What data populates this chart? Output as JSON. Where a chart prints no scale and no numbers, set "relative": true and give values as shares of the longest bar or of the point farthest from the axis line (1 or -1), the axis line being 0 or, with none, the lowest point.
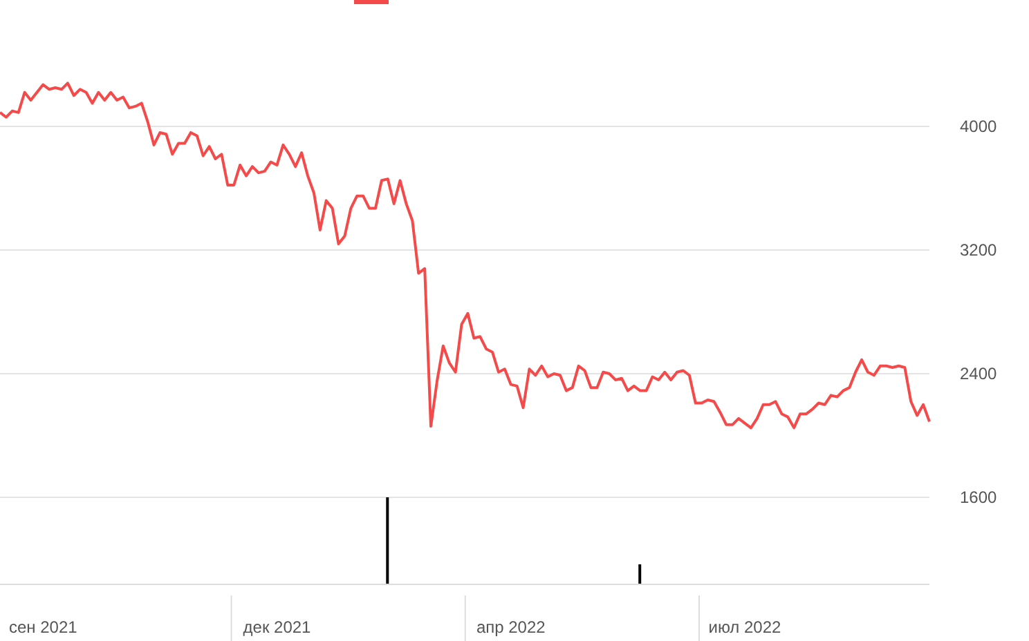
{
  "chart_data": [
    {
      "type": "line",
      "color": "#f44a4a",
      "categories": [
        null,
        null,
        null,
        null,
        null,
        null,
        null,
        "сен 2021",
        null,
        null,
        null,
        null,
        null,
        null,
        null,
        null,
        null,
        null,
        null,
        null,
        null,
        null,
        null,
        null,
        null,
        null,
        null,
        null,
        null,
        null,
        null,
        null,
        null,
        null,
        null,
        null,
        null,
        null,
        null,
        null,
        null,
        null,
        null,
        null,
        null,
        "дек 2021",
        null,
        null,
        null,
        null,
        null,
        null,
        null,
        null,
        null,
        null,
        null,
        null,
        null,
        null,
        null,
        null,
        null,
        null,
        null,
        null,
        null,
        null,
        null,
        null,
        null,
        null,
        null,
        null,
        null,
        null,
        null,
        null,
        null,
        null,
        null,
        null,
        null,
        "апр 2022",
        null,
        null,
        null,
        null,
        null,
        null,
        null,
        null,
        null,
        null,
        null,
        null,
        null,
        null,
        null,
        null,
        null,
        null,
        null,
        null,
        null,
        null,
        null,
        null,
        null,
        null,
        null,
        null,
        null,
        null,
        null,
        null,
        null,
        null,
        null,
        null,
        null,
        "июл 2022",
        null,
        null,
        null,
        null,
        null,
        null,
        null,
        null,
        null,
        null,
        null,
        null,
        null,
        null,
        null,
        null,
        null,
        null,
        null,
        null,
        null,
        null,
        null,
        null,
        null,
        null,
        null,
        null,
        null,
        null
      ],
      "values": [
        4090,
        4060,
        4100,
        4090,
        4220,
        4170,
        4220,
        4270,
        4240,
        4250,
        4240,
        4280,
        4200,
        4240,
        4220,
        4150,
        4220,
        4170,
        4220,
        4170,
        4190,
        4120,
        4130,
        4150,
        4030,
        3880,
        3960,
        3950,
        3820,
        3890,
        3890,
        3960,
        3940,
        3810,
        3870,
        3790,
        3820,
        3620,
        3620,
        3750,
        3680,
        3740,
        3700,
        3710,
        3770,
        3750,
        3880,
        3820,
        3740,
        3830,
        3680,
        3570,
        3330,
        3520,
        3470,
        3240,
        3290,
        3470,
        3550,
        3550,
        3470,
        3470,
        3650,
        3660,
        3500,
        3650,
        3500,
        3390,
        3050,
        3080,
        2060,
        2350,
        2580,
        2470,
        2410,
        2720,
        2790,
        2630,
        2640,
        2560,
        2540,
        2410,
        2430,
        2330,
        2320,
        2180,
        2430,
        2390,
        2450,
        2380,
        2400,
        2390,
        2290,
        2310,
        2450,
        2420,
        2310,
        2310,
        2410,
        2400,
        2360,
        2370,
        2290,
        2320,
        2290,
        2290,
        2380,
        2360,
        2410,
        2360,
        2410,
        2420,
        2390,
        2210,
        2210,
        2230,
        2220,
        2150,
        2070,
        2070,
        2110,
        2080,
        2050,
        2110,
        2200,
        2200,
        2220,
        2140,
        2120,
        2050,
        2140,
        2140,
        2170,
        2210,
        2200,
        2260,
        2250,
        2290,
        2310,
        2410,
        2490,
        2410,
        2390,
        2450,
        2450,
        2440,
        2450,
        2440,
        2220,
        2130,
        2200,
        2090
      ],
      "ylim": [
        1600,
        4800
      ],
      "yticks": [
        1600,
        2400,
        3200,
        4000
      ],
      "grid": "y"
    },
    {
      "type": "bar",
      "color": "#000000",
      "relative": true,
      "categories": [
        null,
        null,
        null,
        null,
        null,
        null,
        null,
        null,
        null,
        null,
        null,
        null,
        null,
        null,
        null,
        null,
        null,
        null,
        null,
        null,
        null,
        null,
        null,
        null,
        null,
        null,
        null,
        null,
        null,
        null,
        null,
        null,
        null,
        null,
        null,
        null,
        null,
        null,
        null,
        null,
        null,
        null,
        null,
        null,
        null,
        null,
        null,
        null,
        null,
        null,
        null,
        null,
        null,
        null,
        null,
        null,
        null,
        null,
        null,
        null,
        null,
        null,
        null,
        null,
        null,
        null,
        null,
        null,
        null,
        null,
        null,
        null,
        null,
        null,
        null,
        null,
        null,
        null,
        null,
        null,
        null,
        null,
        null,
        null,
        null,
        null,
        null,
        null,
        null,
        null,
        null,
        null,
        null,
        null,
        null,
        null,
        null,
        null,
        null,
        null,
        null,
        null,
        null,
        null,
        null,
        null,
        null,
        null,
        null,
        null,
        null,
        null,
        null,
        null,
        null,
        null,
        null,
        null,
        null,
        null,
        null,
        null,
        null,
        null,
        null,
        null,
        null,
        null,
        null,
        null,
        null,
        null,
        null,
        null,
        null,
        null,
        null,
        null,
        null,
        null,
        null,
        null,
        null,
        null,
        null,
        null,
        null,
        null,
        null,
        null,
        null,
        null
      ],
      "values": [
        null,
        null,
        null,
        null,
        null,
        null,
        null,
        null,
        null,
        null,
        null,
        null,
        null,
        null,
        null,
        null,
        null,
        null,
        null,
        null,
        null,
        null,
        null,
        null,
        null,
        null,
        null,
        null,
        null,
        null,
        null,
        null,
        null,
        null,
        null,
        null,
        null,
        null,
        null,
        null,
        null,
        null,
        null,
        null,
        null,
        null,
        null,
        null,
        null,
        null,
        null,
        null,
        null,
        null,
        null,
        null,
        null,
        null,
        null,
        null,
        null,
        null,
        null,
        1,
        null,
        null,
        null,
        null,
        null,
        null,
        null,
        null,
        null,
        null,
        null,
        null,
        null,
        null,
        null,
        null,
        null,
        null,
        null,
        null,
        null,
        null,
        null,
        null,
        null,
        null,
        null,
        null,
        null,
        null,
        null,
        null,
        null,
        null,
        null,
        null,
        null,
        null,
        null,
        null,
        0.23,
        null,
        null,
        null,
        null,
        null,
        null,
        null,
        null,
        null,
        null,
        null,
        null,
        null,
        null,
        null,
        null,
        null,
        null,
        null,
        null,
        null,
        null,
        null,
        null,
        null,
        null,
        null,
        null,
        null,
        null,
        null,
        null,
        null,
        null,
        null,
        null,
        null,
        null,
        null,
        null,
        null,
        null,
        null,
        null,
        null,
        null,
        null
      ]
    }
  ]
}
